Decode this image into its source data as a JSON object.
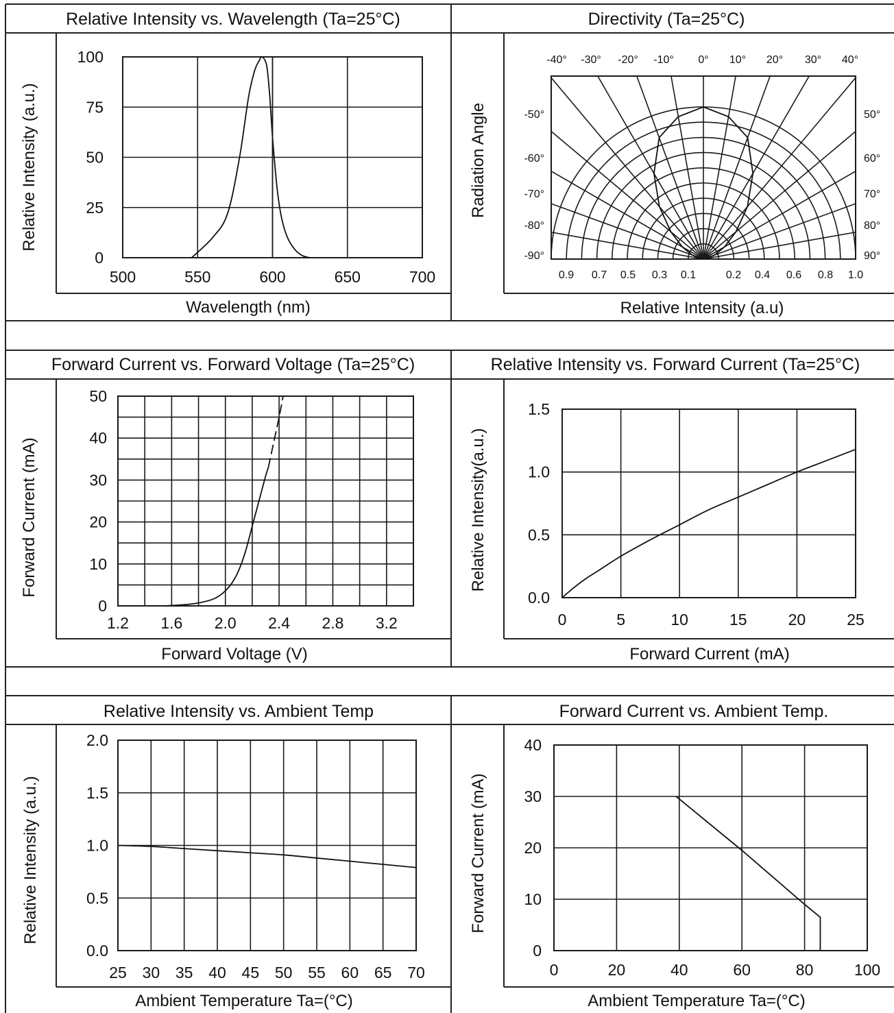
{
  "colors": {
    "line": "#111111",
    "grid": "#1a1a1a",
    "background": "#ffffff"
  },
  "chart_data": [
    {
      "id": "spectrum",
      "type": "line",
      "title": "Relative Intensity vs. Wavelength (Ta=25°C)",
      "xlabel": "Wavelength (nm)",
      "ylabel": "Relative Intensity (a.u.)",
      "xlim": [
        500,
        700
      ],
      "ylim": [
        0,
        100
      ],
      "xticks": [
        "500",
        "550",
        "600",
        "650",
        "700"
      ],
      "yticks": [
        "0",
        "25",
        "50",
        "75",
        "100"
      ],
      "grid": true,
      "series": [
        {
          "x": [
            546,
            560,
            570,
            578,
            584,
            588,
            591,
            593,
            596,
            598,
            600,
            603,
            606,
            610,
            615,
            620,
            625
          ],
          "y": [
            0,
            10,
            22,
            50,
            80,
            93,
            98,
            100,
            96,
            82,
            60,
            35,
            20,
            10,
            4,
            1,
            0
          ]
        }
      ]
    },
    {
      "id": "directivity",
      "type": "polar",
      "title": "Directivity (Ta=25°C)",
      "xlabel": "Relative Intensity (a.u)",
      "ylabel": "Radiation Angle",
      "top_angle_labels": [
        "-40°",
        "-30°",
        "-20°",
        "-10°",
        "0°",
        "10°",
        "20°",
        "30°",
        "40°"
      ],
      "left_angle_labels": [
        "-50°",
        "-60°",
        "-70°",
        "-80°",
        "-90°"
      ],
      "right_angle_labels": [
        "50°",
        "60°",
        "70°",
        "80°",
        "90°"
      ],
      "left_intensity_labels": [
        "0.9",
        "0.7",
        "0.5",
        "0.3",
        "0.1"
      ],
      "right_intensity_labels": [
        "0.2",
        "0.4",
        "0.6",
        "0.8",
        "1.0"
      ],
      "angles_deg": [
        0,
        10,
        20,
        30,
        40,
        50,
        60,
        70,
        80,
        90
      ],
      "relative_intensity": [
        1.0,
        0.95,
        0.85,
        0.65,
        0.45,
        0.28,
        0.16,
        0.08,
        0.03,
        0.0
      ]
    },
    {
      "id": "iv",
      "type": "line",
      "title": "Forward Current vs. Forward Voltage (Ta=25°C)",
      "xlabel": "Forward Voltage (V)",
      "ylabel": "Forward Current (mA)",
      "xlim": [
        1.2,
        3.4
      ],
      "ylim": [
        0,
        50
      ],
      "xticks": [
        "1.2",
        "1.6",
        "2.0",
        "2.4",
        "2.8",
        "3.2"
      ],
      "xtick_values": [
        1.2,
        1.6,
        2.0,
        2.4,
        2.8,
        3.2
      ],
      "yticks": [
        "0",
        "10",
        "20",
        "30",
        "40",
        "50"
      ],
      "grid": true,
      "series": [
        {
          "style": "solid",
          "x": [
            1.55,
            1.7,
            1.8,
            1.9,
            1.95,
            2.0,
            2.05,
            2.1,
            2.15,
            2.2,
            2.25,
            2.3,
            2.32
          ],
          "y": [
            0,
            0.3,
            0.7,
            1.5,
            2.3,
            3.6,
            5.5,
            8.5,
            13,
            19,
            25,
            31,
            33
          ]
        },
        {
          "style": "dashed",
          "x": [
            2.32,
            2.36,
            2.4,
            2.43
          ],
          "y": [
            33,
            39,
            45,
            50
          ]
        }
      ]
    },
    {
      "id": "int_current",
      "type": "line",
      "title": "Relative Intensity vs. Forward Current (Ta=25°C)",
      "xlabel": "Forward Current (mA)",
      "ylabel": "Relative Intensity(a.u.)",
      "xlim": [
        0,
        25
      ],
      "ylim": [
        0,
        1.5
      ],
      "xticks": [
        "0",
        "5",
        "10",
        "15",
        "20",
        "25"
      ],
      "yticks": [
        "0.0",
        "0.5",
        "1.0",
        "1.5"
      ],
      "grid": true,
      "series": [
        {
          "x": [
            0,
            1,
            2,
            3,
            5,
            7.5,
            10,
            12.5,
            15,
            17.5,
            20,
            22.5,
            25
          ],
          "y": [
            0,
            0.08,
            0.15,
            0.21,
            0.33,
            0.46,
            0.58,
            0.7,
            0.8,
            0.9,
            1.0,
            1.09,
            1.18
          ]
        }
      ]
    },
    {
      "id": "int_temp",
      "type": "line",
      "title": "Relative Intensity vs. Ambient Temp",
      "xlabel": "Ambient Temperature Ta=(°C)",
      "ylabel": "Relative Intensity (a.u.)",
      "xlim": [
        25,
        70
      ],
      "ylim": [
        0,
        2.0
      ],
      "xticks": [
        "25",
        "30",
        "35",
        "40",
        "45",
        "50",
        "55",
        "60",
        "65",
        "70"
      ],
      "yticks": [
        "0.0",
        "0.5",
        "1.0",
        "1.5",
        "2.0"
      ],
      "grid": true,
      "series": [
        {
          "x": [
            25,
            30,
            35,
            40,
            45,
            50,
            55,
            60,
            65,
            70
          ],
          "y": [
            1.0,
            0.99,
            0.97,
            0.95,
            0.93,
            0.91,
            0.88,
            0.85,
            0.82,
            0.79
          ]
        }
      ]
    },
    {
      "id": "current_temp",
      "type": "line",
      "title": "Forward Current vs. Ambient Temp.",
      "xlabel": "Ambient Temperature Ta=(°C)",
      "ylabel": "Forward Current (mA)",
      "xlim": [
        0,
        100
      ],
      "ylim": [
        0,
        40
      ],
      "xticks": [
        "0",
        "20",
        "40",
        "60",
        "80",
        "100"
      ],
      "yticks": [
        "0",
        "10",
        "20",
        "30",
        "40"
      ],
      "grid": true,
      "series": [
        {
          "x": [
            39,
            60,
            80,
            85,
            85
          ],
          "y": [
            30,
            19.5,
            9,
            6.5,
            0
          ]
        }
      ]
    }
  ]
}
